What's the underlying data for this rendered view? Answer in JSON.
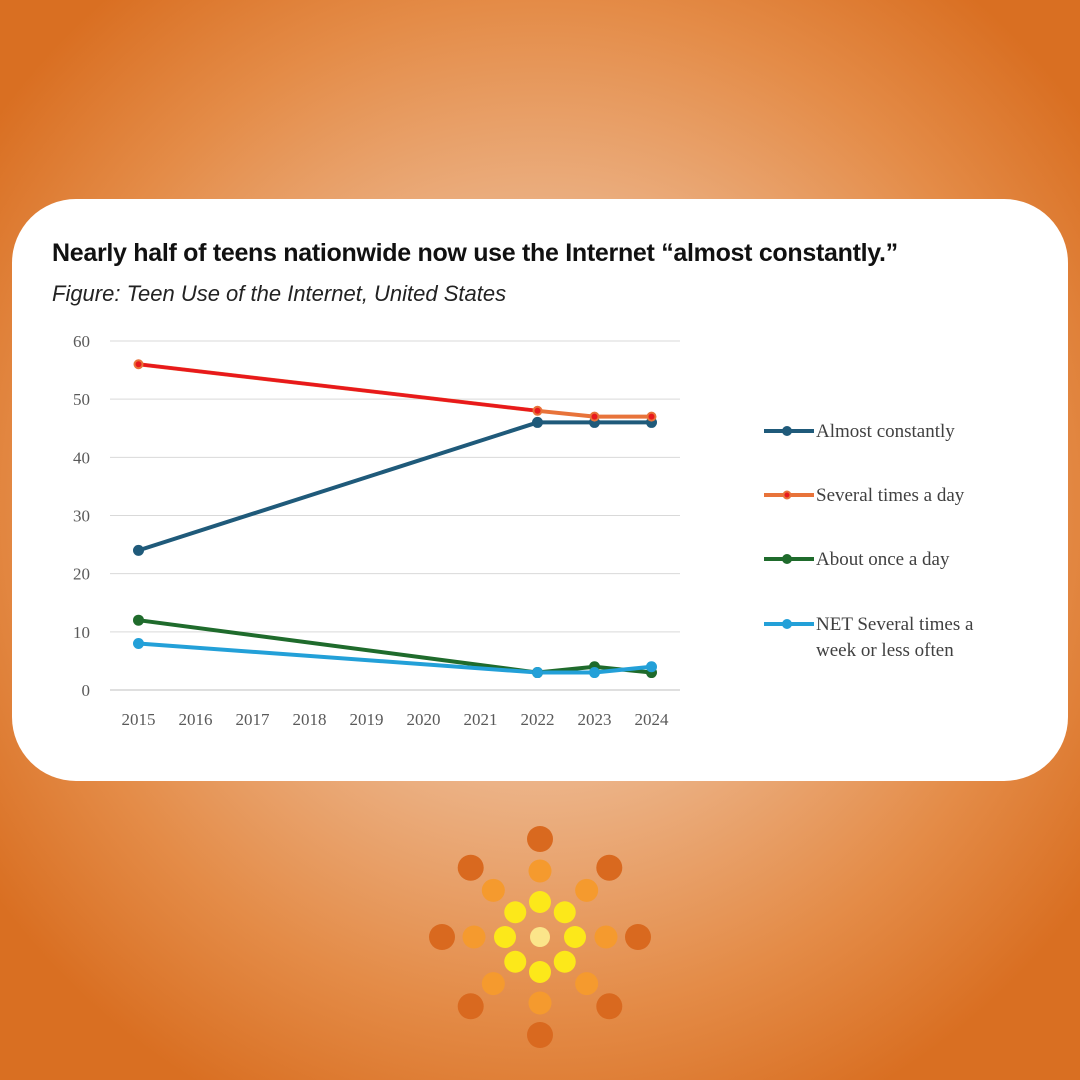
{
  "header": {
    "title": "Nearly half of teens nationwide now use the Internet “almost constantly.”",
    "subtitle": "Figure: Teen Use of the Internet, United States"
  },
  "chart_data": {
    "type": "line",
    "x": [
      2015,
      2016,
      2017,
      2018,
      2019,
      2020,
      2021,
      2022,
      2023,
      2024
    ],
    "xlabels": [
      "2015",
      "2016",
      "2017",
      "2018",
      "2019",
      "2020",
      "2021",
      "2022",
      "2023",
      "2024"
    ],
    "yticks": [
      "0",
      "10",
      "20",
      "30",
      "40",
      "50",
      "60"
    ],
    "ylim": [
      0,
      60
    ],
    "grid": true,
    "legend_position": "right",
    "series": [
      {
        "name": "Almost constantly",
        "color": "#1f5a7a",
        "points": [
          [
            2015,
            24
          ],
          [
            2022,
            46
          ],
          [
            2023,
            46
          ],
          [
            2024,
            46
          ]
        ]
      },
      {
        "name": "Several times a day",
        "color": "#e8733a",
        "marker_color": "#e8191c",
        "points": [
          [
            2015,
            56
          ],
          [
            2022,
            48
          ],
          [
            2023,
            47
          ],
          [
            2024,
            47
          ]
        ]
      },
      {
        "name": "About once a day",
        "color": "#1f6b2c",
        "points": [
          [
            2015,
            12
          ],
          [
            2022,
            3
          ],
          [
            2023,
            4
          ],
          [
            2024,
            3
          ]
        ]
      },
      {
        "name": "NET Several times a week or less often",
        "color": "#23a0d8",
        "points": [
          [
            2015,
            8
          ],
          [
            2022,
            3
          ],
          [
            2023,
            3
          ],
          [
            2024,
            4
          ]
        ]
      }
    ],
    "primary_line": {
      "from": 2015,
      "to": 2022,
      "color": "#e8191c"
    },
    "legend_lines": [
      [
        "Almost constantly"
      ],
      [
        "Several times a day"
      ],
      [
        "About once a day"
      ],
      [
        "NET Several times a",
        "week or less often"
      ]
    ]
  },
  "logo": {
    "name": "sun-burst-dots-logo",
    "colors": [
      "#d9691f",
      "#f59a2e",
      "#fce81a",
      "#fbe58a"
    ]
  }
}
